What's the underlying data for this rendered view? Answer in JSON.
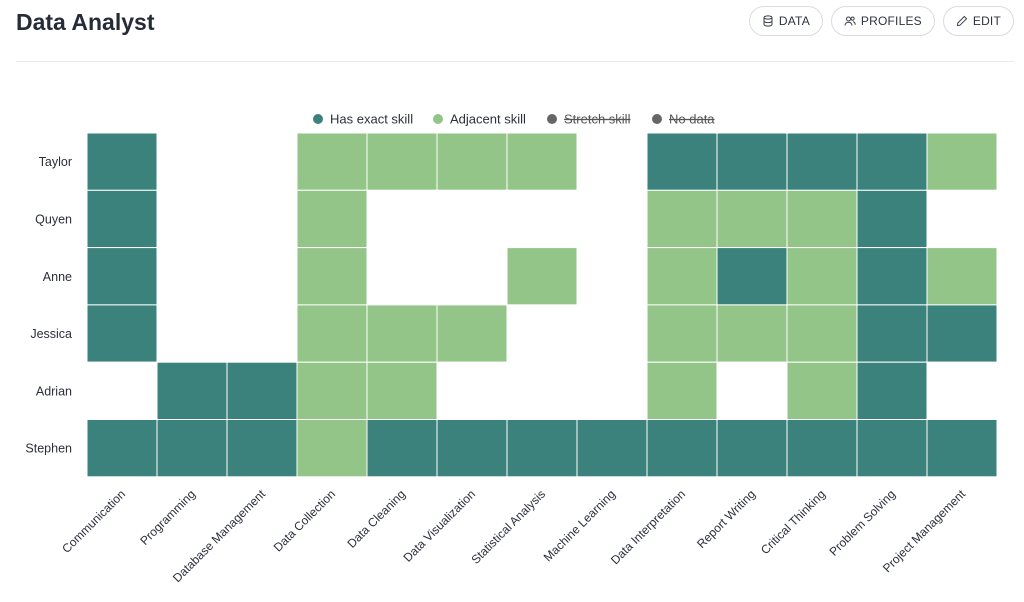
{
  "header": {
    "title": "Data Analyst",
    "buttons": {
      "data": "DATA",
      "profiles": "PROFILES",
      "edit": "EDIT"
    }
  },
  "colors": {
    "exact": "#3b827c",
    "adjacent": "#93c589",
    "stretch": "#666666",
    "nodata": "#666666",
    "empty": "#ffffff"
  },
  "chart_data": {
    "type": "heatmap",
    "legend": [
      {
        "key": "exact",
        "label": "Has exact skill",
        "active": true
      },
      {
        "key": "adjacent",
        "label": "Adjacent skill",
        "active": true
      },
      {
        "key": "stretch",
        "label": "Stretch skill",
        "active": false
      },
      {
        "key": "nodata",
        "label": "No data",
        "active": false
      }
    ],
    "legend_position": "top-center",
    "rows": [
      "Taylor",
      "Quyen",
      "Anne",
      "Jessica",
      "Adrian",
      "Stephen"
    ],
    "columns": [
      "Communication",
      "Programming",
      "Database Management",
      "Data Collection",
      "Data Cleaning",
      "Data Visualization",
      "Statistical Analysis",
      "Machine Learning",
      "Data Interpretation",
      "Report Writing",
      "Critical Thinking",
      "Problem Solving",
      "Project Management"
    ],
    "values": [
      [
        "exact",
        "",
        "",
        "adjacent",
        "adjacent",
        "adjacent",
        "adjacent",
        "",
        "exact",
        "exact",
        "exact",
        "exact",
        "adjacent"
      ],
      [
        "exact",
        "",
        "",
        "adjacent",
        "",
        "",
        "",
        "",
        "adjacent",
        "adjacent",
        "adjacent",
        "exact",
        ""
      ],
      [
        "exact",
        "",
        "",
        "adjacent",
        "",
        "",
        "adjacent",
        "",
        "adjacent",
        "exact",
        "adjacent",
        "exact",
        "adjacent"
      ],
      [
        "exact",
        "",
        "",
        "adjacent",
        "adjacent",
        "adjacent",
        "",
        "",
        "adjacent",
        "adjacent",
        "adjacent",
        "exact",
        "exact"
      ],
      [
        "",
        "exact",
        "exact",
        "adjacent",
        "adjacent",
        "",
        "",
        "",
        "adjacent",
        "",
        "adjacent",
        "exact",
        ""
      ],
      [
        "exact",
        "exact",
        "exact",
        "adjacent",
        "exact",
        "exact",
        "exact",
        "exact",
        "exact",
        "exact",
        "exact",
        "exact",
        "exact"
      ]
    ]
  }
}
